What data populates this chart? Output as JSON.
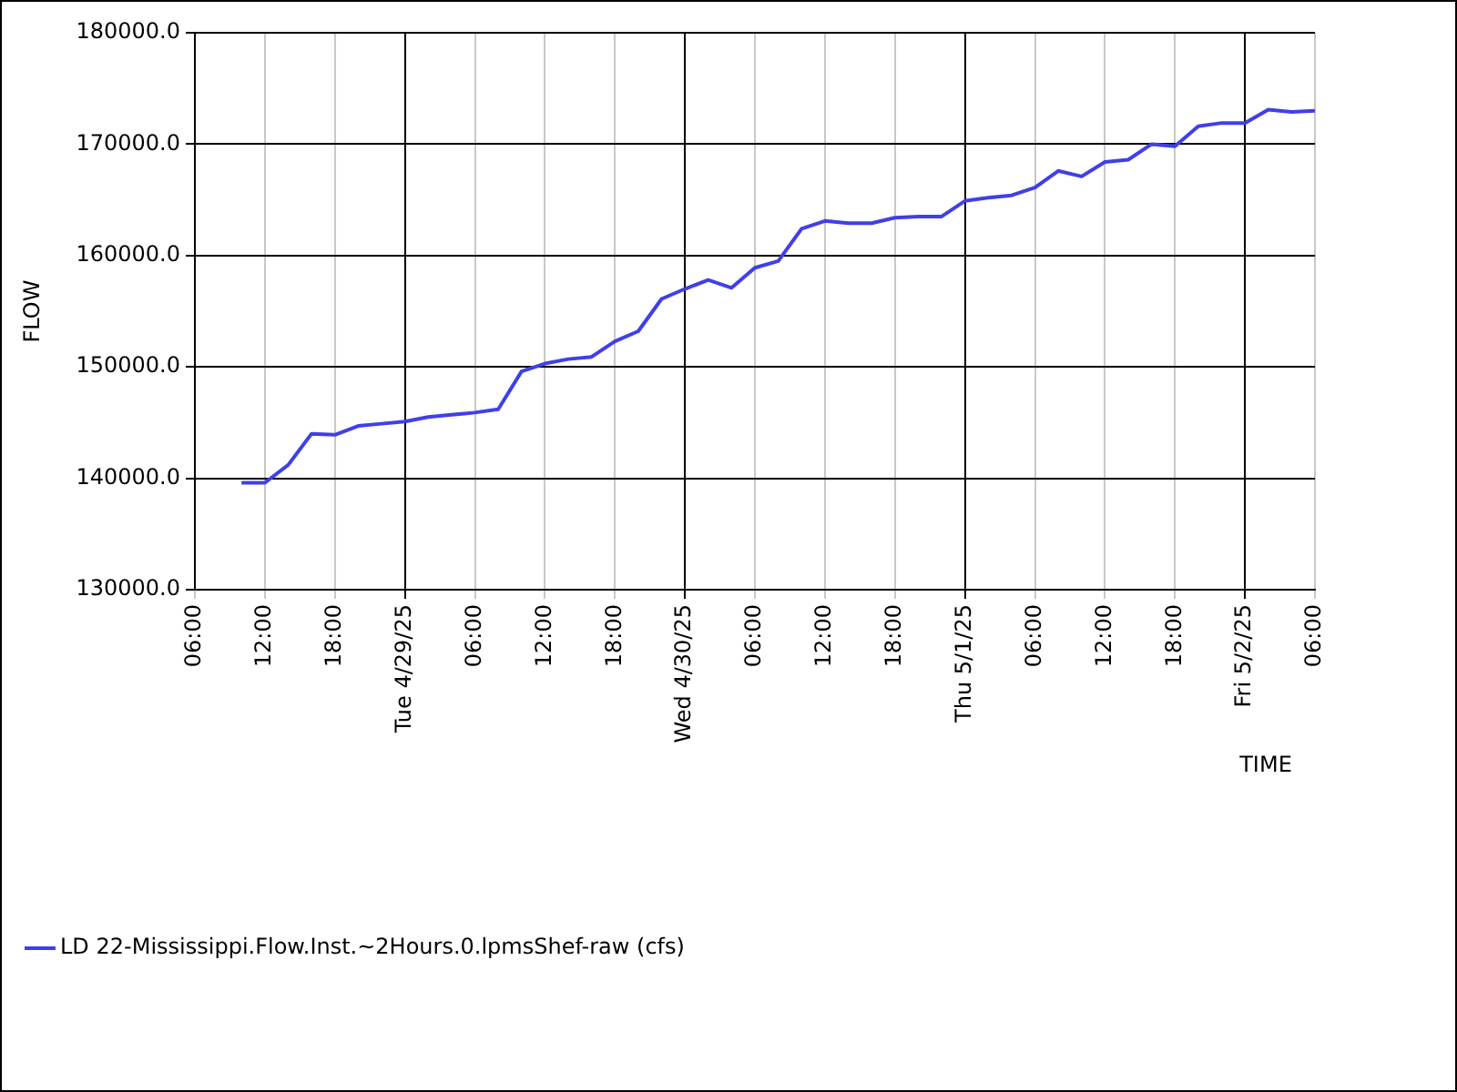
{
  "chart_data": {
    "type": "line",
    "xlabel": "TIME",
    "ylabel": "FLOW",
    "x": [
      "--04-28T10:00",
      "--04-28T12:00",
      "--04-28T14:00",
      "--04-28T16:00",
      "--04-28T18:00",
      "--04-28T20:00",
      "--04-28T22:00",
      "--04-29T00:00",
      "--04-29T02:00",
      "--04-29T04:00",
      "--04-29T06:00",
      "--04-29T08:00",
      "--04-29T10:00",
      "--04-29T12:00",
      "--04-29T14:00",
      "--04-29T16:00",
      "--04-29T18:00",
      "--04-29T20:00",
      "--04-29T22:00",
      "--04-30T00:00",
      "--04-30T02:00",
      "--04-30T04:00",
      "--04-30T06:00",
      "--04-30T08:00",
      "--04-30T10:00",
      "--04-30T12:00",
      "--04-30T14:00",
      "--04-30T16:00",
      "--04-30T18:00",
      "--04-30T20:00",
      "--04-30T22:00",
      "--05-01T00:00",
      "--05-01T02:00",
      "--05-01T04:00",
      "--05-01T06:00",
      "--05-01T08:00",
      "--05-01T10:00",
      "--05-01T12:00",
      "--05-01T14:00",
      "--05-01T16:00",
      "--05-01T18:00",
      "--05-01T20:00",
      "--05-01T22:00",
      "--05-02T00:00",
      "--05-02T02:00",
      "--05-02T04:00",
      "--05-02T06:00"
    ],
    "series": [
      {
        "name": "LD 22-Mississippi.Flow.Inst.~2Hours.0.lpmsShef-raw (cfs)",
        "color": "#4040e8",
        "values": [
          139600,
          139600,
          141200,
          144000,
          143900,
          144700,
          144900,
          145100,
          145500,
          145700,
          145900,
          146200,
          149600,
          150300,
          150700,
          150900,
          152300,
          153200,
          156100,
          157000,
          157800,
          157100,
          158900,
          159500,
          162400,
          163100,
          162900,
          162900,
          163400,
          163500,
          163500,
          164900,
          165200,
          165400,
          166100,
          167600,
          167100,
          168400,
          168600,
          170000,
          169800,
          171600,
          171900,
          171900,
          173100,
          172900,
          173000
        ]
      }
    ],
    "xlim": [
      "--04-28T06:00",
      "--05-02T06:00"
    ],
    "xticks": [
      {
        "value": "--04-28T06:00",
        "label": "06:00"
      },
      {
        "value": "--04-28T12:00",
        "label": "12:00"
      },
      {
        "value": "--04-28T18:00",
        "label": "18:00"
      },
      {
        "value": "--04-29T00:00",
        "label": "Tue 4/29/25"
      },
      {
        "value": "--04-29T06:00",
        "label": "06:00"
      },
      {
        "value": "--04-29T12:00",
        "label": "12:00"
      },
      {
        "value": "--04-29T18:00",
        "label": "18:00"
      },
      {
        "value": "--04-30T00:00",
        "label": "Wed 4/30/25"
      },
      {
        "value": "--04-30T06:00",
        "label": "06:00"
      },
      {
        "value": "--04-30T12:00",
        "label": "12:00"
      },
      {
        "value": "--04-30T18:00",
        "label": "18:00"
      },
      {
        "value": "--05-01T00:00",
        "label": "Thu 5/1/25"
      },
      {
        "value": "--05-01T06:00",
        "label": "06:00"
      },
      {
        "value": "--05-01T12:00",
        "label": "12:00"
      },
      {
        "value": "--05-01T18:00",
        "label": "18:00"
      },
      {
        "value": "--05-02T00:00",
        "label": "Fri 5/2/25"
      },
      {
        "value": "--05-02T06:00",
        "label": "06:00"
      }
    ],
    "ylim": [
      130000,
      180000
    ],
    "yticks": [
      {
        "value": 130000,
        "label": "130000.0"
      },
      {
        "value": 140000,
        "label": "140000.0"
      },
      {
        "value": 150000,
        "label": "150000.0"
      },
      {
        "value": 160000,
        "label": "160000.0"
      },
      {
        "value": 170000,
        "label": "170000.0"
      },
      {
        "value": 180000,
        "label": "180000.0"
      }
    ],
    "grid": true,
    "legend": "bottom",
    "marker": "none",
    "line_style": "solid"
  }
}
